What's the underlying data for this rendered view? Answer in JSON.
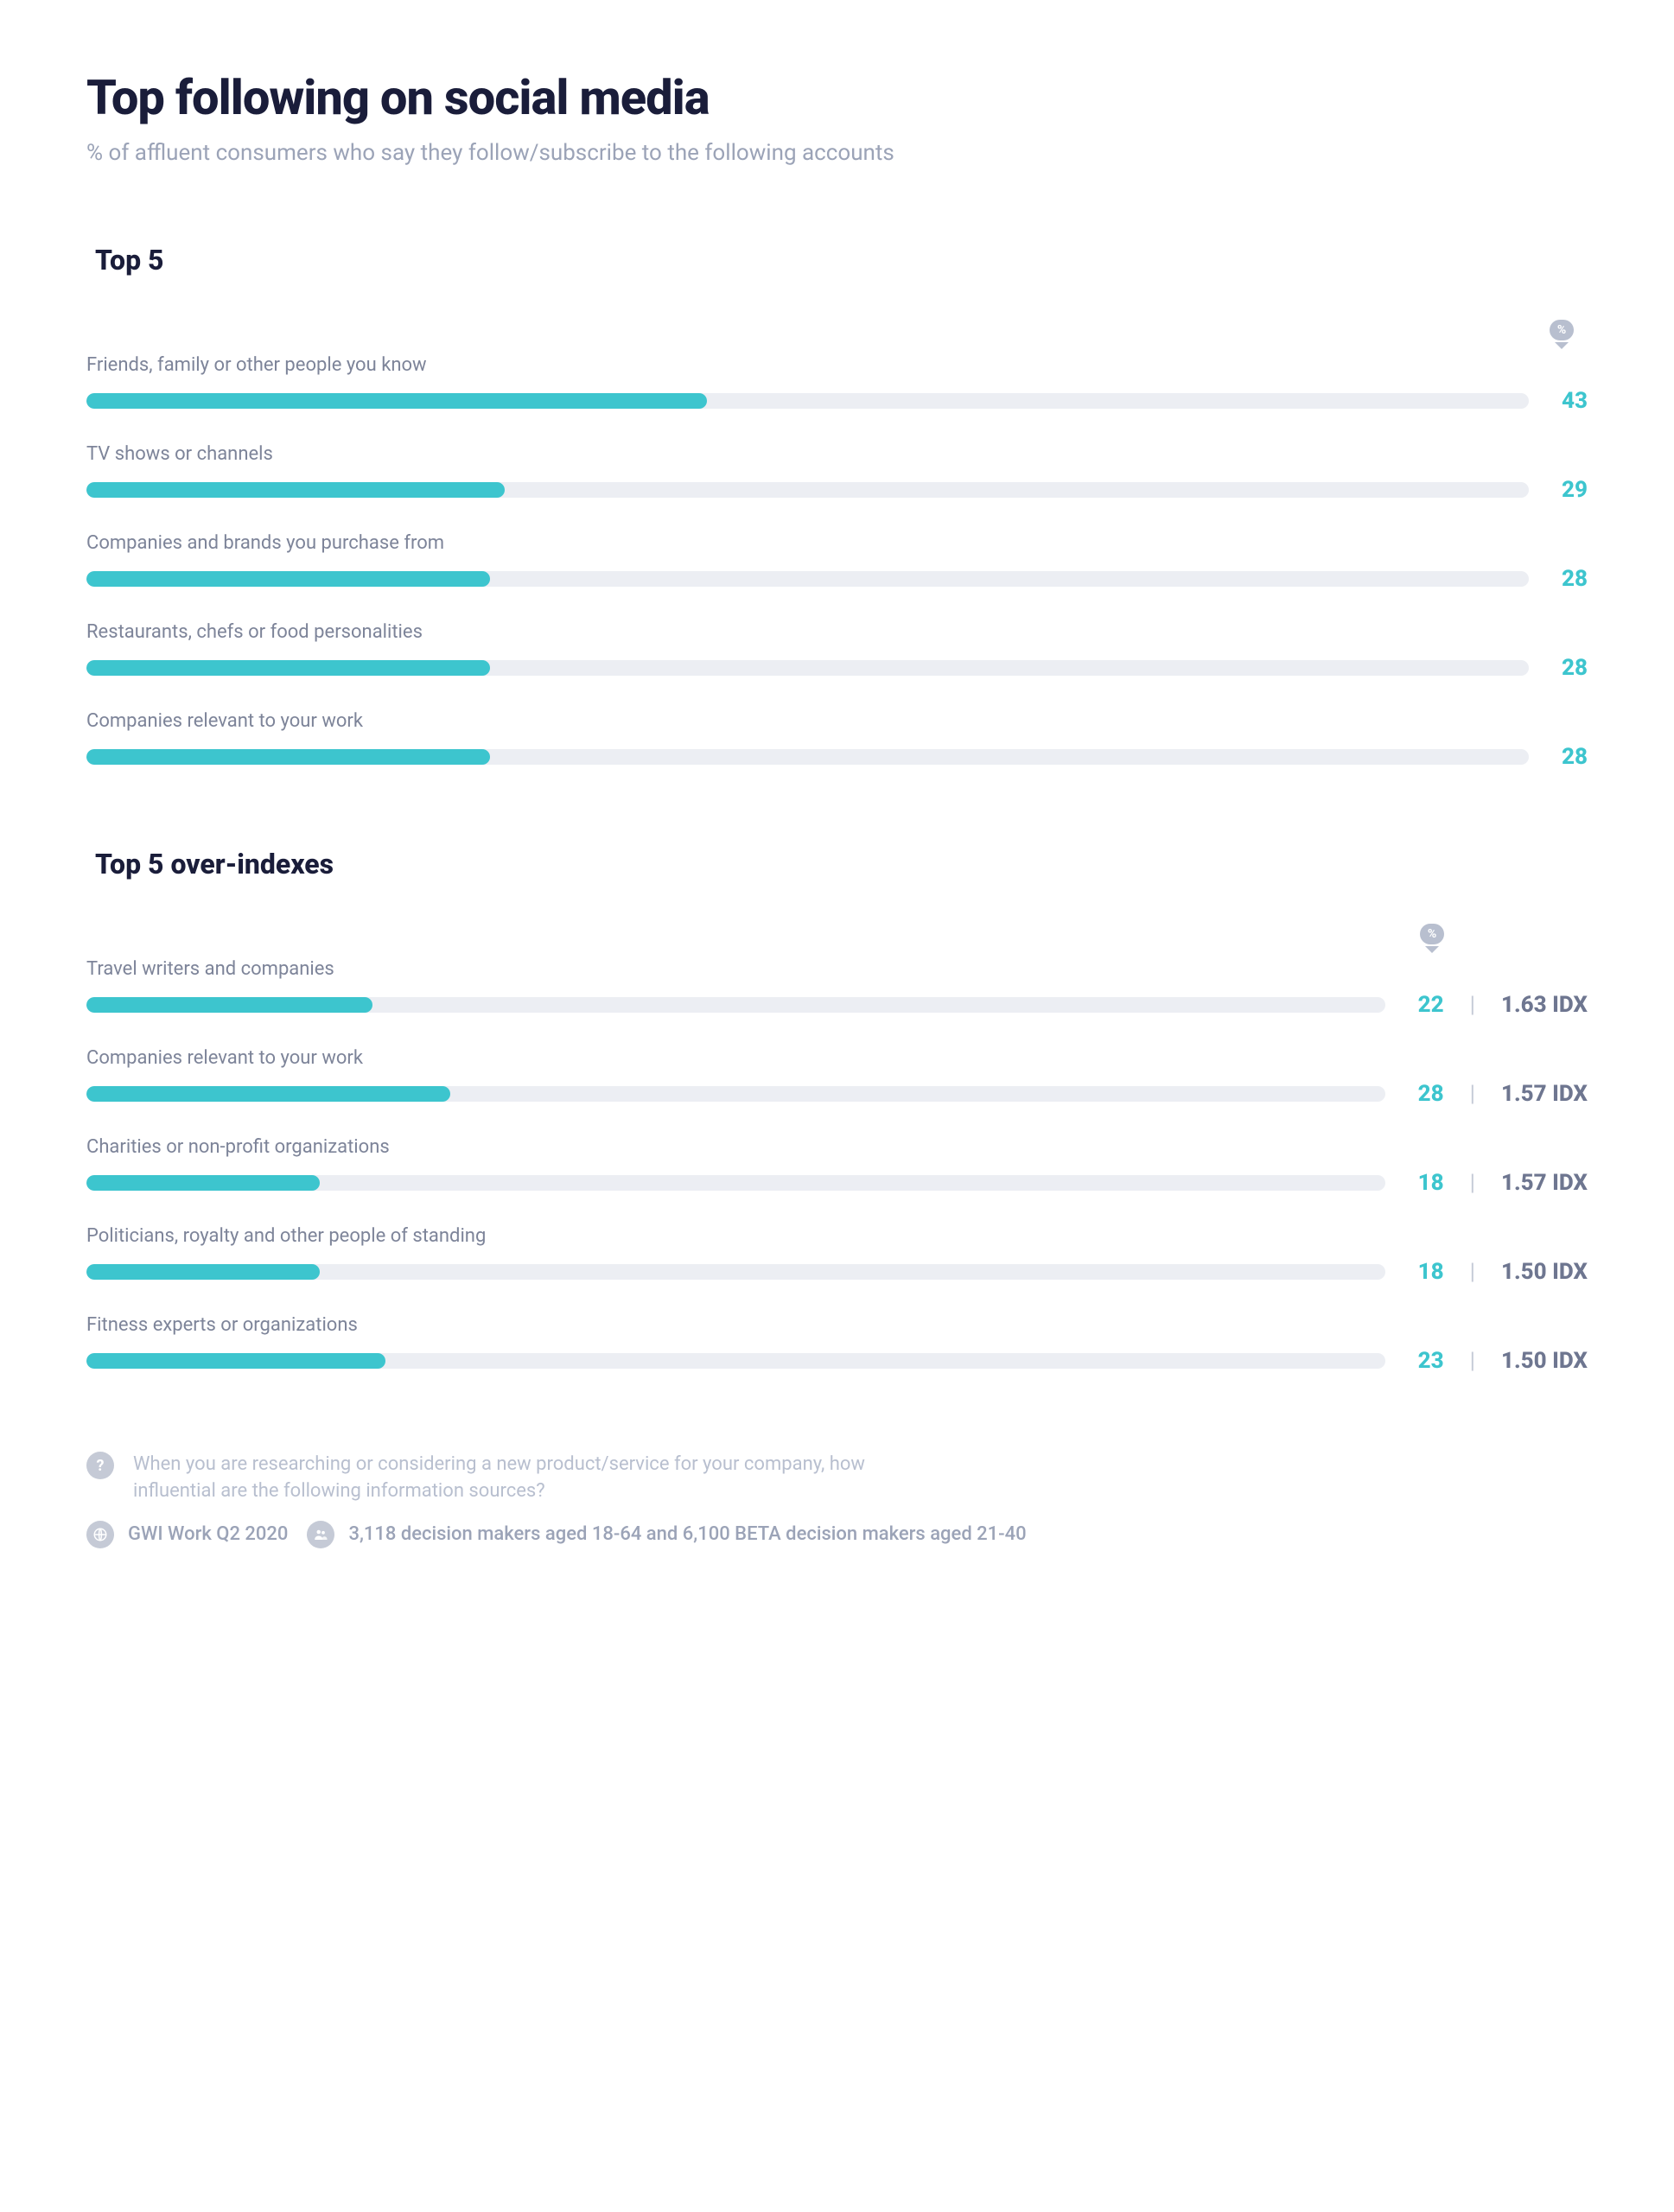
{
  "title": "Top following on social media",
  "subtitle": "% of affluent consumers who say they follow/subscribe to the following accounts",
  "colors": {
    "bar_fill": "#3dc5ce",
    "bar_track": "#eceef3",
    "value_text": "#3dc5ce",
    "idx_text": "#6e7690",
    "title_text": "#1a1d3a",
    "label_text": "#7d8499",
    "muted_text": "#b8bfcf",
    "background": "#ffffff"
  },
  "top5": {
    "heading": "Top 5",
    "pct_symbol": "%",
    "max": 100,
    "items": [
      {
        "label": "Friends, family or other people you know",
        "value": 43
      },
      {
        "label": "TV shows or channels",
        "value": 29
      },
      {
        "label": "Companies and brands you purchase from",
        "value": 28
      },
      {
        "label": "Restaurants, chefs or food personalities",
        "value": 28
      },
      {
        "label": "Companies relevant to your work",
        "value": 28
      }
    ]
  },
  "overindex": {
    "heading": "Top 5 over-indexes",
    "pct_symbol": "%",
    "max": 100,
    "idx_suffix": "IDX",
    "items": [
      {
        "label": "Travel writers and companies",
        "value": 22,
        "idx": "1.63"
      },
      {
        "label": "Companies relevant to your work",
        "value": 28,
        "idx": "1.57"
      },
      {
        "label": "Charities or non-profit organizations",
        "value": 18,
        "idx": "1.57"
      },
      {
        "label": "Politicians, royalty and other people of standing",
        "value": 18,
        "idx": "1.50"
      },
      {
        "label": "Fitness experts or organizations",
        "value": 23,
        "idx": "1.50"
      }
    ]
  },
  "footer": {
    "question": "When you are researching or considering a new product/service for your company, how influential are the following information sources?",
    "source": "GWI Work Q2 2020",
    "sample": "3,118 decision makers aged 18-64 and 6,100 BETA decision makers aged 21-40"
  }
}
